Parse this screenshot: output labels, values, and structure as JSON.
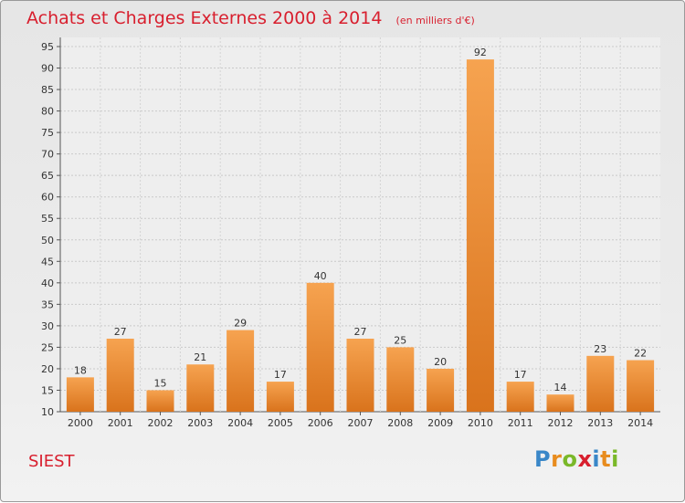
{
  "chart_data": {
    "type": "bar",
    "title": "Achats et Charges Externes 2000 à 2014",
    "subtitle": "(en milliers d'€)",
    "categories": [
      "2000",
      "2001",
      "2002",
      "2003",
      "2004",
      "2005",
      "2006",
      "2007",
      "2008",
      "2009",
      "2010",
      "2011",
      "2012",
      "2013",
      "2014"
    ],
    "values": [
      18,
      27,
      15,
      21,
      29,
      17,
      40,
      27,
      25,
      20,
      92,
      17,
      14,
      23,
      22
    ],
    "ylim": [
      10,
      95
    ],
    "yticks": [
      10,
      15,
      20,
      25,
      30,
      35,
      40,
      45,
      50,
      55,
      60,
      65,
      70,
      75,
      80,
      85,
      90,
      95
    ],
    "grid": true,
    "bar_color_top": "#f6a350",
    "bar_color_bottom": "#d9731c"
  },
  "footer": {
    "town": "SIEST",
    "logo": {
      "text": "Proxiti",
      "letter_colors": [
        "#3a87c8",
        "#e88c1e",
        "#7ab829",
        "#d81f2e",
        "#3a87c8",
        "#e88c1e",
        "#7ab829"
      ]
    }
  }
}
